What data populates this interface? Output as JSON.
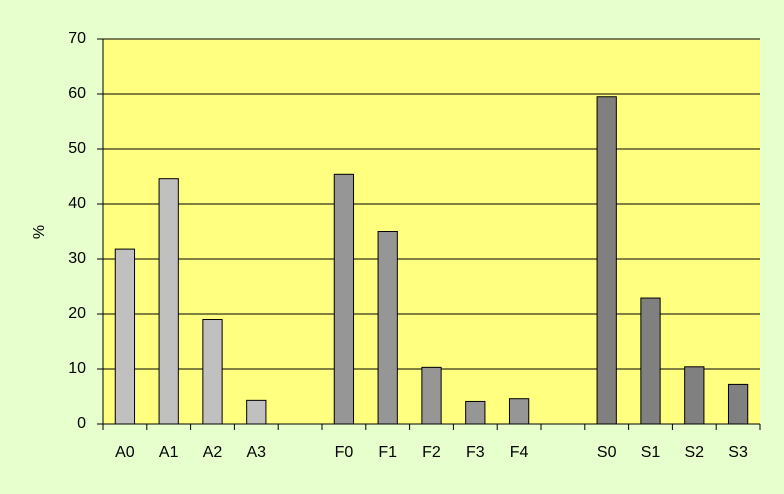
{
  "chart_data": {
    "type": "bar",
    "y_label": "%",
    "categories": [
      "A0",
      "A1",
      "A2",
      "A3",
      null,
      "F0",
      "F1",
      "F2",
      "F3",
      "F4",
      null,
      "S0",
      "S1",
      "S2",
      "S3"
    ],
    "values": [
      31.8,
      44.6,
      19,
      4.3,
      null,
      45.4,
      35,
      10.3,
      4.1,
      4.6,
      null,
      59.5,
      22.9,
      10.4,
      7.2
    ],
    "colors": [
      "#c0c0c0",
      "#c0c0c0",
      "#c0c0c0",
      "#c0c0c0",
      null,
      "#969696",
      "#969696",
      "#969696",
      "#969696",
      "#969696",
      null,
      "#808080",
      "#808080",
      "#808080",
      "#808080"
    ],
    "ylim": [
      0,
      70
    ],
    "yticks": [
      0,
      10,
      20,
      30,
      40,
      50,
      60,
      70
    ],
    "grid": true
  }
}
